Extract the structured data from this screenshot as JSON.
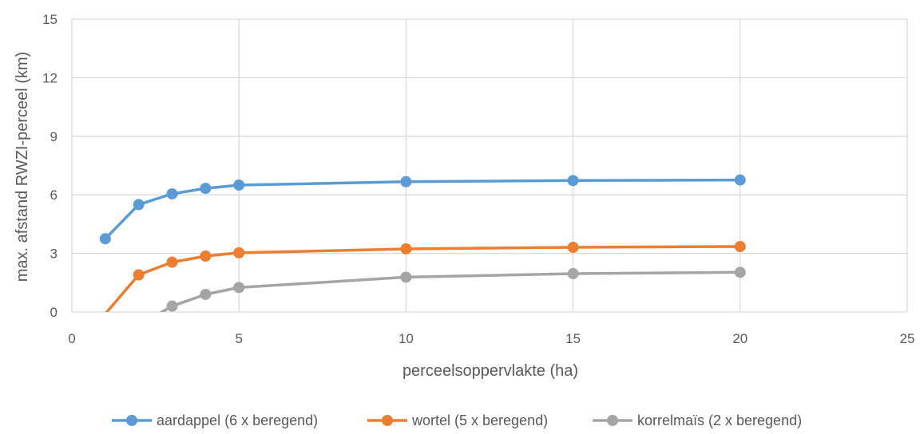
{
  "chart_data": {
    "type": "line",
    "title": "",
    "xlabel": "perceelsoppervlakte (ha)",
    "ylabel": "max. afstand RWZI-perceel (km)",
    "xlim": [
      0,
      25
    ],
    "ylim": [
      0,
      15
    ],
    "xticks": [
      0,
      5,
      10,
      15,
      20,
      25
    ],
    "yticks": [
      0,
      3,
      6,
      9,
      12,
      15
    ],
    "grid": true,
    "legend_position": "bottom",
    "series": [
      {
        "name": "aardappel (6 x beregend)",
        "color": "#5B9BD5",
        "points": [
          [
            1,
            3.75
          ],
          [
            2,
            5.5
          ],
          [
            3,
            6.05
          ],
          [
            4,
            6.33
          ],
          [
            5,
            6.5
          ],
          [
            10,
            6.67
          ],
          [
            15,
            6.73
          ],
          [
            20,
            6.76
          ]
        ]
      },
      {
        "name": "wortel (5 x beregend)",
        "color": "#ED7D31",
        "points": [
          [
            1,
            -0.1
          ],
          [
            2,
            1.9
          ],
          [
            3,
            2.55
          ],
          [
            4,
            2.86
          ],
          [
            5,
            3.03
          ],
          [
            10,
            3.23
          ],
          [
            15,
            3.31
          ],
          [
            20,
            3.35
          ]
        ]
      },
      {
        "name": "korrelmaïs (2 x beregend)",
        "color": "#A5A5A5",
        "points": [
          [
            2.6,
            -0.1
          ],
          [
            3,
            0.3
          ],
          [
            4,
            0.9
          ],
          [
            5,
            1.25
          ],
          [
            10,
            1.78
          ],
          [
            15,
            1.96
          ],
          [
            20,
            2.03
          ]
        ]
      }
    ]
  }
}
